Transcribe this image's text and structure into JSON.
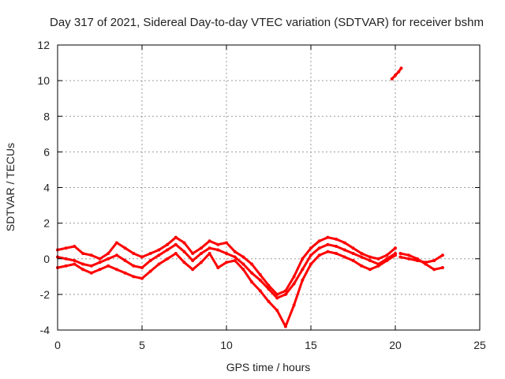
{
  "chart_data": {
    "type": "scatter",
    "title": "Day 317 of 2021, Sidereal Day-to-day VTEC variation (SDTVAR) for receiver bshm",
    "xlabel": "GPS time / hours",
    "ylabel": "SDTVAR / TECUs",
    "xlim": [
      0,
      25
    ],
    "ylim": [
      -4,
      12
    ],
    "xticks": [
      0,
      5,
      10,
      15,
      20,
      25
    ],
    "yticks": [
      -4,
      -2,
      0,
      2,
      4,
      6,
      8,
      10,
      12
    ],
    "grid": true,
    "color": "#ff0000",
    "series": [
      {
        "name": "trace-upper",
        "x": [
          0.0,
          0.5,
          1.0,
          1.5,
          2.0,
          2.5,
          3.0,
          3.5,
          4.0,
          4.5,
          5.0,
          5.5,
          6.0,
          6.5,
          7.0,
          7.5,
          8.0,
          8.5,
          9.0,
          9.5,
          10.0,
          10.5,
          11.0,
          11.5,
          12.0,
          12.5,
          13.0,
          13.5,
          14.0,
          14.5,
          15.0,
          15.5,
          16.0,
          16.5,
          17.0,
          17.5,
          18.0,
          18.5,
          19.0,
          19.5,
          20.0
        ],
        "y": [
          0.5,
          0.6,
          0.7,
          0.3,
          0.2,
          0.0,
          0.3,
          0.9,
          0.6,
          0.3,
          0.1,
          0.3,
          0.5,
          0.8,
          1.2,
          0.9,
          0.3,
          0.6,
          1.0,
          0.8,
          0.9,
          0.4,
          0.1,
          -0.3,
          -0.9,
          -1.5,
          -2.0,
          -1.8,
          -1.0,
          0.0,
          0.6,
          1.0,
          1.2,
          1.1,
          0.9,
          0.6,
          0.3,
          0.1,
          0.0,
          0.2,
          0.6
        ]
      },
      {
        "name": "trace-middle",
        "x": [
          0.0,
          0.5,
          1.0,
          1.5,
          2.0,
          2.5,
          3.0,
          3.5,
          4.0,
          4.5,
          5.0,
          5.5,
          6.0,
          6.5,
          7.0,
          7.5,
          8.0,
          8.5,
          9.0,
          9.5,
          10.0,
          10.5,
          11.0,
          11.5,
          12.0,
          12.5,
          13.0,
          13.5,
          14.0,
          14.5,
          15.0,
          15.5,
          16.0,
          16.5,
          17.0,
          17.5,
          18.0,
          18.5,
          19.0,
          19.5,
          20.0
        ],
        "y": [
          0.1,
          0.0,
          -0.1,
          -0.3,
          -0.4,
          -0.2,
          0.0,
          0.2,
          -0.1,
          -0.4,
          -0.5,
          -0.1,
          0.2,
          0.5,
          0.8,
          0.4,
          -0.1,
          0.3,
          0.6,
          0.5,
          0.3,
          0.1,
          -0.3,
          -0.8,
          -1.2,
          -1.7,
          -2.2,
          -2.0,
          -1.4,
          -0.6,
          0.2,
          0.6,
          0.8,
          0.7,
          0.5,
          0.3,
          0.1,
          -0.1,
          -0.3,
          0.0,
          0.3
        ]
      },
      {
        "name": "trace-lower",
        "x": [
          0.0,
          0.5,
          1.0,
          1.5,
          2.0,
          2.5,
          3.0,
          3.5,
          4.0,
          4.5,
          5.0,
          5.5,
          6.0,
          6.5,
          7.0,
          7.5,
          8.0,
          8.5,
          9.0,
          9.5,
          10.0,
          10.5,
          11.0,
          11.5,
          12.0,
          12.5,
          13.0,
          13.5,
          14.0,
          14.5,
          15.0,
          15.5,
          16.0,
          16.5,
          17.0,
          17.5,
          18.0,
          18.5,
          19.0,
          19.5,
          20.0
        ],
        "y": [
          -0.5,
          -0.4,
          -0.3,
          -0.6,
          -0.8,
          -0.6,
          -0.4,
          -0.6,
          -0.8,
          -1.0,
          -1.1,
          -0.7,
          -0.3,
          0.0,
          0.3,
          -0.2,
          -0.6,
          -0.2,
          0.3,
          -0.5,
          -0.2,
          -0.1,
          -0.6,
          -1.3,
          -1.8,
          -2.4,
          -2.9,
          -3.8,
          -2.6,
          -1.2,
          -0.3,
          0.2,
          0.4,
          0.3,
          0.1,
          -0.1,
          -0.4,
          -0.6,
          -0.4,
          -0.1,
          0.2
        ]
      },
      {
        "name": "trace-late-a",
        "x": [
          20.3,
          20.8,
          21.3,
          21.8,
          22.3,
          22.8
        ],
        "y": [
          0.1,
          0.0,
          -0.1,
          -0.2,
          -0.1,
          0.2
        ]
      },
      {
        "name": "trace-late-b",
        "x": [
          20.3,
          20.8,
          21.3,
          21.8,
          22.3,
          22.8
        ],
        "y": [
          0.3,
          0.2,
          0.0,
          -0.3,
          -0.6,
          -0.5
        ]
      },
      {
        "name": "trace-outlier",
        "x": [
          19.8,
          20.0,
          20.2,
          20.35
        ],
        "y": [
          10.1,
          10.3,
          10.5,
          10.7
        ]
      }
    ]
  }
}
